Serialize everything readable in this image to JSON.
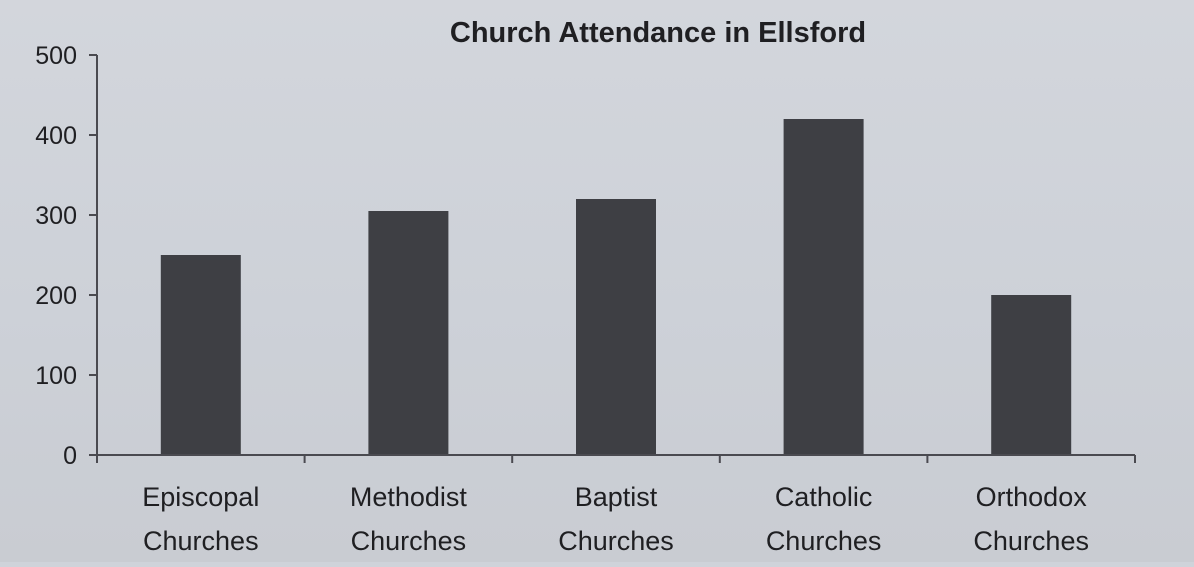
{
  "chart_data": {
    "type": "bar",
    "title": "Church Attendance in Ellsford",
    "categories": [
      [
        "Episcopal",
        "Churches"
      ],
      [
        "Methodist",
        "Churches"
      ],
      [
        "Baptist",
        "Churches"
      ],
      [
        "Catholic",
        "Churches"
      ],
      [
        "Orthodox",
        "Churches"
      ]
    ],
    "values": [
      250,
      305,
      320,
      420,
      200
    ],
    "ylim": [
      0,
      500
    ],
    "yticks": [
      "0",
      "100",
      "200",
      "300",
      "400",
      "500"
    ],
    "xlabel": "",
    "ylabel": "",
    "grid": false,
    "bar_color": "#3e3f44"
  }
}
